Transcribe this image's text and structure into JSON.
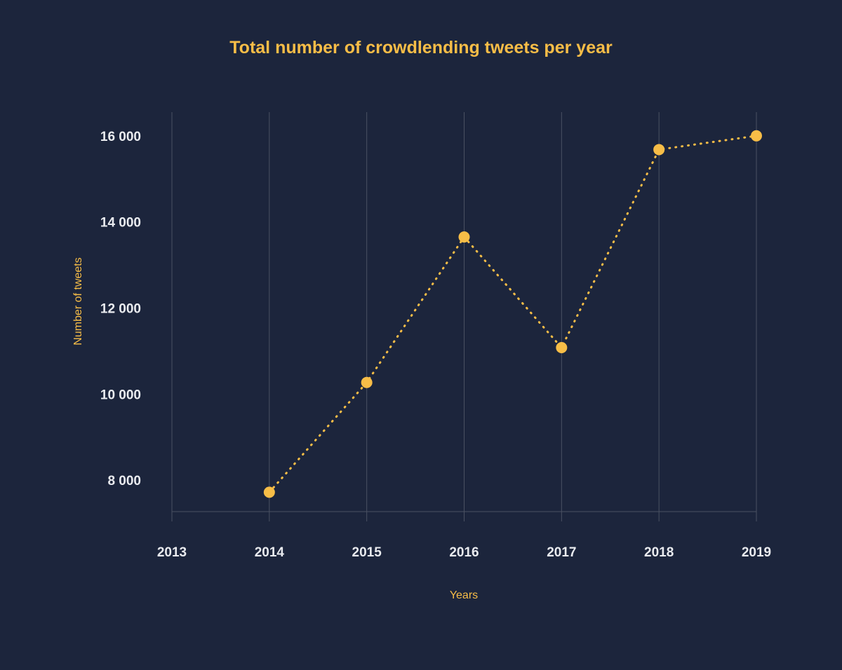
{
  "chart_data": {
    "type": "line",
    "title": "Total number of crowdlending tweets per year",
    "xlabel": "Years",
    "ylabel": "Number of tweets",
    "x_ticks": [
      "2013",
      "2014",
      "2015",
      "2016",
      "2017",
      "2018",
      "2019"
    ],
    "y_ticks": [
      {
        "value": 8000,
        "label": "8 000"
      },
      {
        "value": 10000,
        "label": "10 000"
      },
      {
        "value": 12000,
        "label": "12 000"
      },
      {
        "value": 14000,
        "label": "14 000"
      },
      {
        "value": 16000,
        "label": "16 000"
      }
    ],
    "ylim": [
      7270,
      16550
    ],
    "grid": {
      "vertical": true,
      "horizontal": false
    },
    "series": [
      {
        "x": [
          2014,
          2015,
          2016,
          2017,
          2018,
          2019
        ],
        "values": [
          7720,
          10270,
          13650,
          11080,
          15680,
          16000
        ],
        "line_style": "dotted",
        "color": "#f7bd47"
      }
    ],
    "colors": {
      "background": "#1c253c",
      "accent": "#f7bd47",
      "tick_text": "#e9ebef",
      "grid": "#4a5162"
    }
  }
}
